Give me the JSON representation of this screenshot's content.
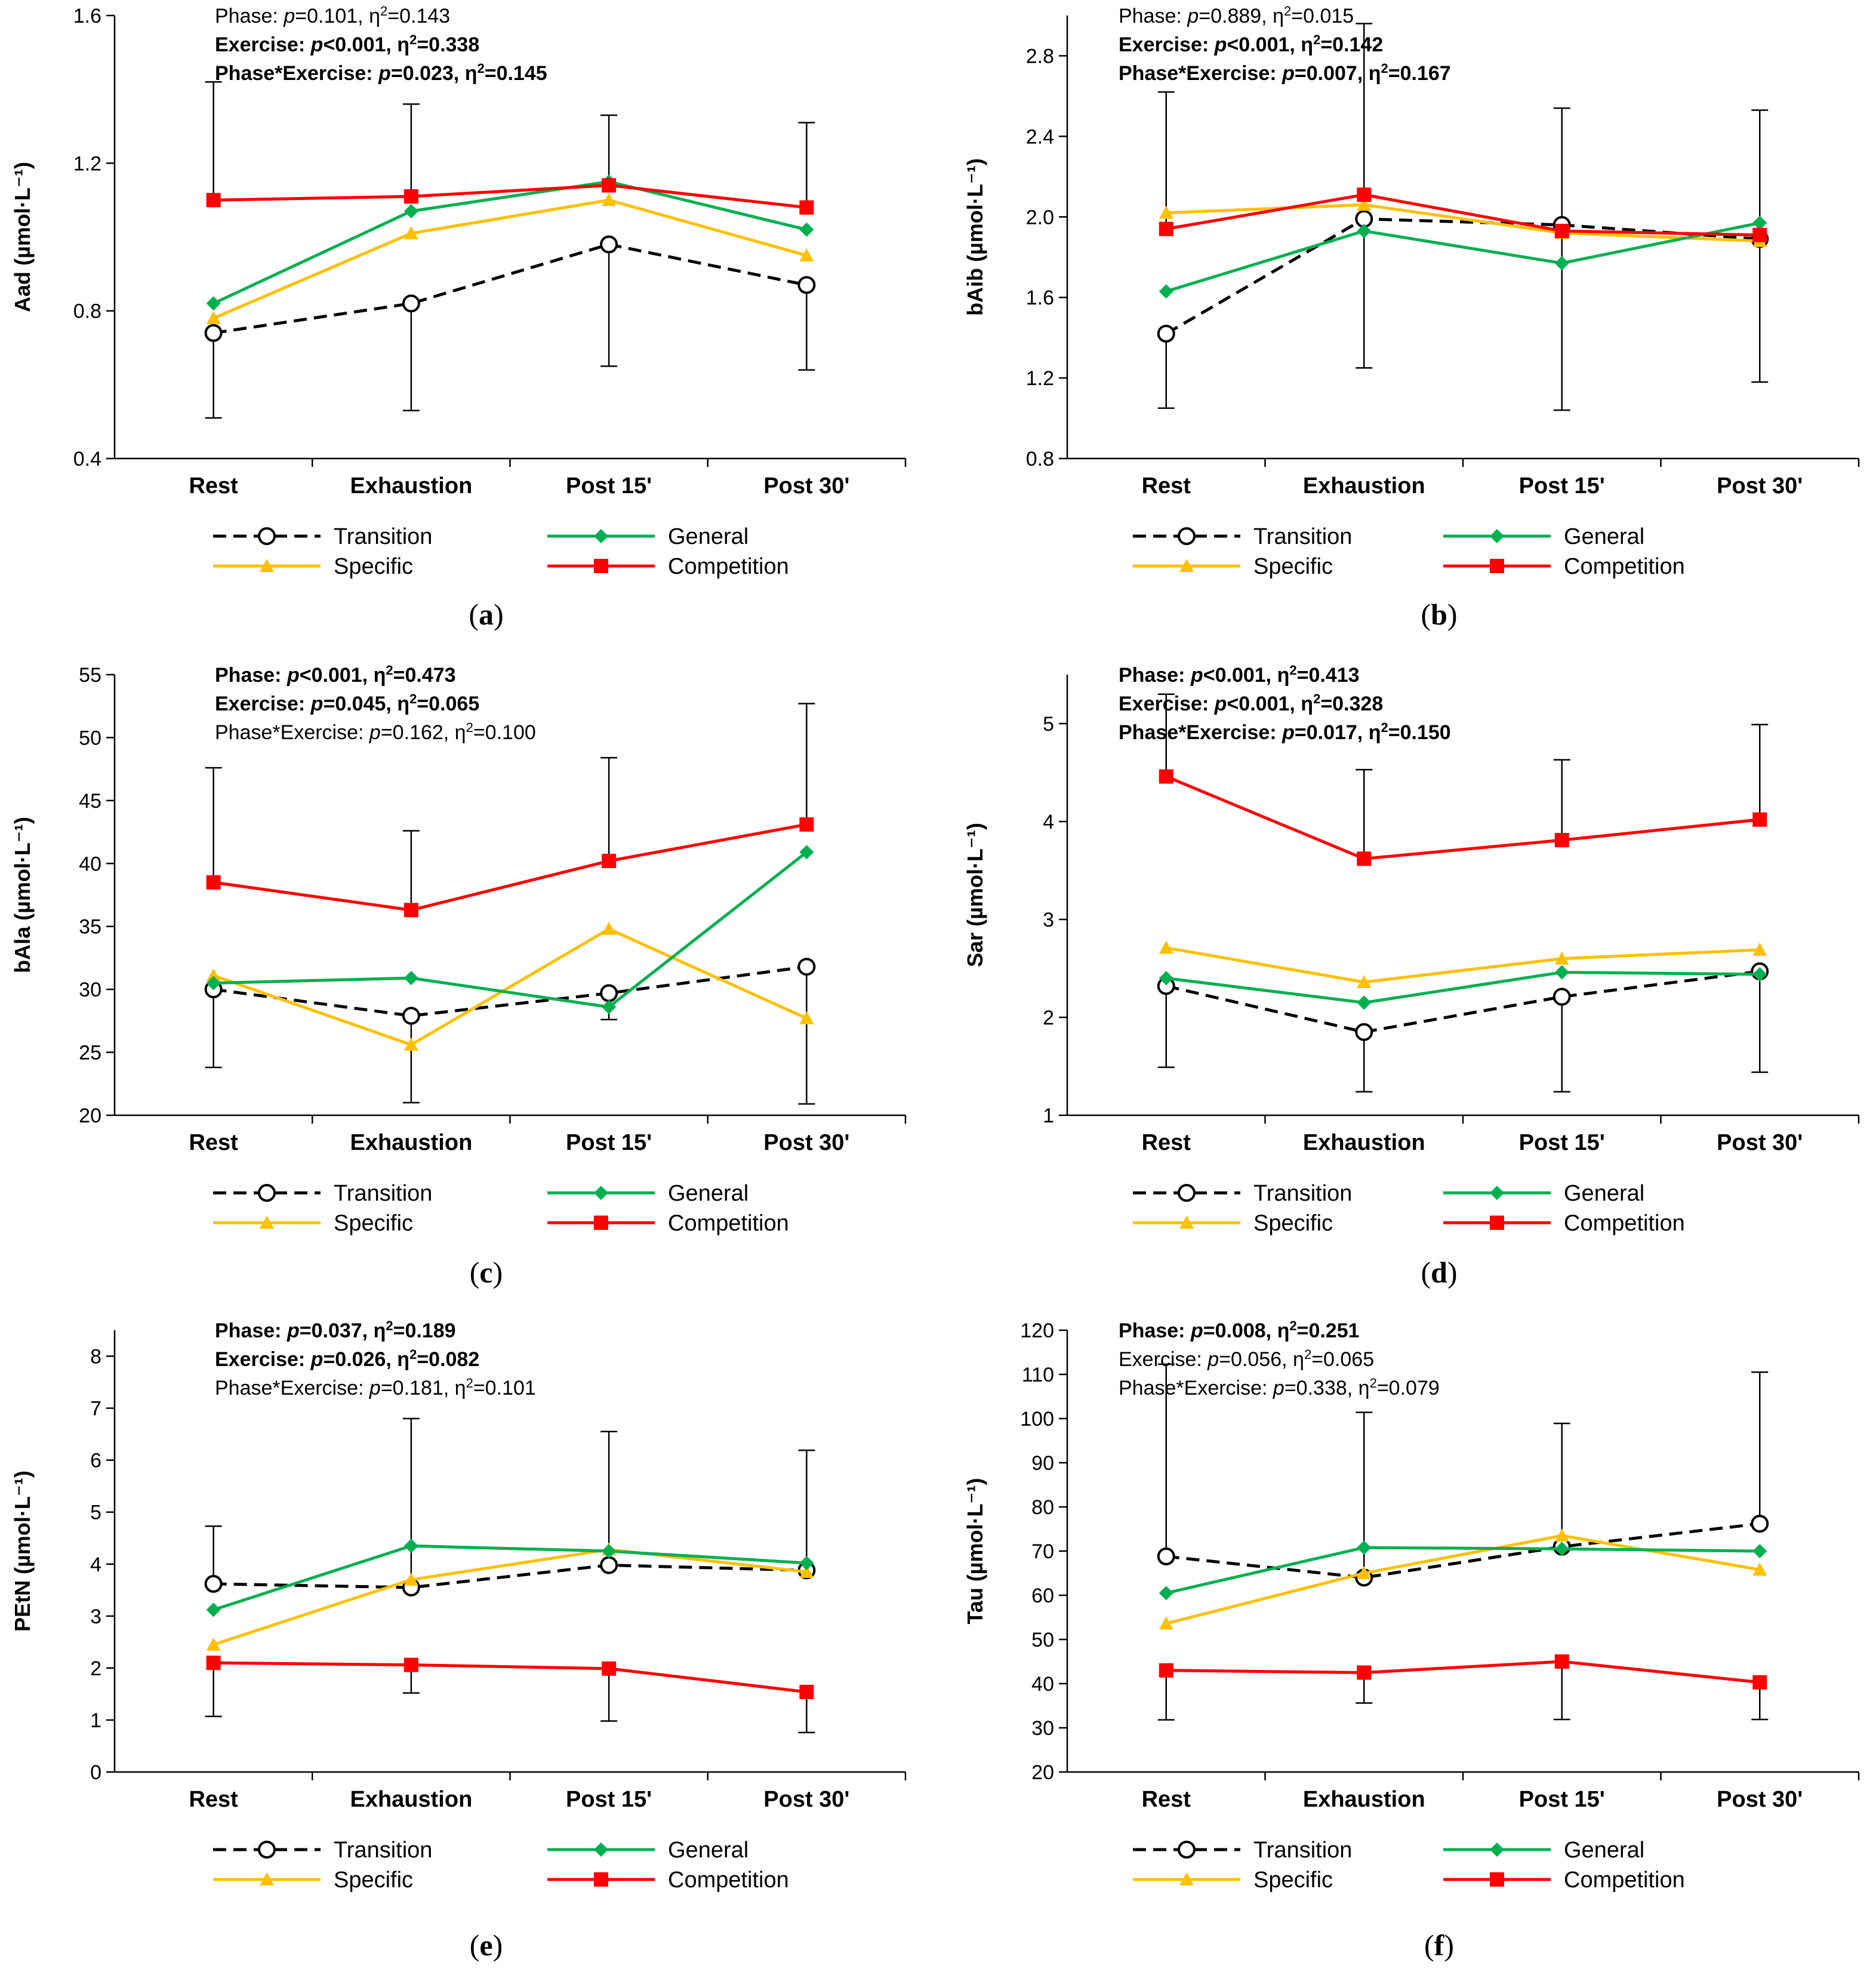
{
  "figure": {
    "x_categories": [
      "Rest",
      "Exhaustion",
      "Post 15'",
      "Post 30'"
    ],
    "legend": {
      "transition": "Transition",
      "general": "General",
      "specific": "Specific",
      "competition": "Competition"
    },
    "colors": {
      "transition": "#000000",
      "general": "#00b050",
      "specific": "#ffc000",
      "competition": "#ff0000",
      "errorbar": "#000000"
    }
  },
  "chart_data": [
    {
      "type": "line",
      "panel_label": "(a)",
      "panel_letter": "a",
      "ylabel": "Aad (µmol·L⁻¹)",
      "ylim": [
        0.4,
        1.6
      ],
      "yticks": [
        "0.4",
        "0.8",
        "1.2",
        "1.6"
      ],
      "yticks_values": [
        0.4,
        0.8,
        1.2,
        1.6
      ],
      "categories": [
        "Rest",
        "Exhaustion",
        "Post 15'",
        "Post 30'"
      ],
      "stats": [
        {
          "label": "Phase: ",
          "pv": "=0.101, η",
          "eta": "=0.143",
          "bold": false
        },
        {
          "label": "Exercise: ",
          "pv": "<0.001, η",
          "eta": "=0.338",
          "bold": true
        },
        {
          "label": "Phase*Exercise: ",
          "pv": "=0.023, η",
          "eta": "=0.145",
          "bold": true
        }
      ],
      "series": [
        {
          "name": "Transition",
          "values": [
            0.74,
            0.82,
            0.98,
            0.87
          ],
          "err_low": [
            0.51,
            0.53,
            0.65,
            0.64
          ],
          "err_high": null
        },
        {
          "name": "General",
          "values": [
            0.82,
            1.07,
            1.15,
            1.02
          ],
          "err_low": null,
          "err_high": null
        },
        {
          "name": "Specific",
          "values": [
            0.78,
            1.01,
            1.1,
            0.95
          ],
          "err_low": null,
          "err_high": null
        },
        {
          "name": "Competition",
          "values": [
            1.1,
            1.11,
            1.14,
            1.08
          ],
          "err_low": null,
          "err_high": [
            1.42,
            1.36,
            1.33,
            1.31
          ]
        }
      ]
    },
    {
      "type": "line",
      "panel_label": "(b)",
      "panel_letter": "b",
      "ylabel": "bAib (µmol·L⁻¹)",
      "ylim": [
        0.8,
        3.0
      ],
      "yticks": [
        "0.8",
        "1.2",
        "1.6",
        "2.0",
        "2.4",
        "2.8"
      ],
      "yticks_values": [
        0.8,
        1.2,
        1.6,
        2.0,
        2.4,
        2.8
      ],
      "categories": [
        "Rest",
        "Exhaustion",
        "Post 15'",
        "Post 30'"
      ],
      "stats": [
        {
          "label": "Phase: ",
          "pv": "=0.889, η",
          "eta": "=0.015",
          "bold": false
        },
        {
          "label": "Exercise: ",
          "pv": "<0.001, η",
          "eta": "=0.142",
          "bold": true
        },
        {
          "label": "Phase*Exercise: ",
          "pv": "=0.007, η",
          "eta": "=0.167",
          "bold": true
        }
      ],
      "series": [
        {
          "name": "Transition",
          "values": [
            1.42,
            1.99,
            1.96,
            1.89
          ],
          "err_low": [
            1.05,
            1.25,
            1.04,
            1.18
          ],
          "err_high": null
        },
        {
          "name": "General",
          "values": [
            1.63,
            1.93,
            1.77,
            1.97
          ],
          "err_low": null,
          "err_high": null
        },
        {
          "name": "Specific",
          "values": [
            2.02,
            2.06,
            1.92,
            1.88
          ],
          "err_low": null,
          "err_high": null
        },
        {
          "name": "Competition",
          "values": [
            1.94,
            2.11,
            1.93,
            1.91
          ],
          "err_low": null,
          "err_high": [
            2.62,
            2.96,
            2.54,
            2.53
          ]
        }
      ]
    },
    {
      "type": "line",
      "panel_label": "(c)",
      "panel_letter": "c",
      "ylabel": "bAla (µmol·L⁻¹)",
      "ylim": [
        20,
        55
      ],
      "yticks": [
        "20",
        "25",
        "30",
        "35",
        "40",
        "45",
        "50",
        "55"
      ],
      "yticks_values": [
        20,
        25,
        30,
        35,
        40,
        45,
        50,
        55
      ],
      "categories": [
        "Rest",
        "Exhaustion",
        "Post 15'",
        "Post 30'"
      ],
      "stats": [
        {
          "label": "Phase: ",
          "pv": "<0.001, η",
          "eta": "=0.473",
          "bold": true
        },
        {
          "label": "Exercise: ",
          "pv": "=0.045, η",
          "eta": "=0.065",
          "bold": true
        },
        {
          "label": "Phase*Exercise: ",
          "pv": "=0.162, η",
          "eta": "=0.100",
          "bold": false
        }
      ],
      "series": [
        {
          "name": "Transition",
          "values": [
            30.0,
            27.9,
            29.7,
            31.8
          ],
          "err_low": [
            23.8,
            21.0,
            27.6,
            20.9
          ],
          "err_high": null
        },
        {
          "name": "General",
          "values": [
            30.5,
            30.9,
            28.6,
            40.9
          ],
          "err_low": null,
          "err_high": null
        },
        {
          "name": "Specific",
          "values": [
            31.1,
            25.6,
            34.8,
            27.7
          ],
          "err_low": null,
          "err_high": null
        },
        {
          "name": "Competition",
          "values": [
            38.5,
            36.3,
            40.2,
            43.1
          ],
          "err_low": null,
          "err_high": [
            47.6,
            42.6,
            48.4,
            52.7
          ]
        }
      ]
    },
    {
      "type": "line",
      "panel_label": "(d)",
      "panel_letter": "d",
      "ylabel": "Sar (µmol·L⁻¹)",
      "ylim": [
        1,
        5.5
      ],
      "yticks": [
        "1",
        "2",
        "3",
        "4",
        "5"
      ],
      "yticks_values": [
        1,
        2,
        3,
        4,
        5
      ],
      "categories": [
        "Rest",
        "Exhaustion",
        "Post 15'",
        "Post 30'"
      ],
      "stats": [
        {
          "label": "Phase: ",
          "pv": "<0.001, η",
          "eta": "=0.413",
          "bold": true
        },
        {
          "label": "Exercise: ",
          "pv": "<0.001, η",
          "eta": "=0.328",
          "bold": true
        },
        {
          "label": "Phase*Exercise: ",
          "pv": "=0.017, η",
          "eta": "=0.150",
          "bold": true
        }
      ],
      "series": [
        {
          "name": "Transition",
          "values": [
            2.32,
            1.85,
            2.21,
            2.47
          ],
          "err_low": [
            1.49,
            1.24,
            1.24,
            1.44
          ],
          "err_high": null
        },
        {
          "name": "General",
          "values": [
            2.4,
            2.15,
            2.46,
            2.44
          ],
          "err_low": null,
          "err_high": null
        },
        {
          "name": "Specific",
          "values": [
            2.71,
            2.36,
            2.6,
            2.69
          ],
          "err_low": null,
          "err_high": null
        },
        {
          "name": "Competition",
          "values": [
            4.46,
            3.62,
            3.81,
            4.02
          ],
          "err_low": null,
          "err_high": [
            5.3,
            4.53,
            4.63,
            4.99
          ]
        }
      ]
    },
    {
      "type": "line",
      "panel_label": "(e)",
      "panel_letter": "e",
      "ylabel": "PEtN (µmol·L⁻¹)",
      "ylim": [
        0,
        8.5
      ],
      "yticks": [
        "0",
        "1",
        "2",
        "3",
        "4",
        "5",
        "6",
        "7",
        "8"
      ],
      "yticks_values": [
        0,
        1,
        2,
        3,
        4,
        5,
        6,
        7,
        8
      ],
      "categories": [
        "Rest",
        "Exhaustion",
        "Post 15'",
        "Post 30'"
      ],
      "stats": [
        {
          "label": "Phase: ",
          "pv": "=0.037, η",
          "eta": "=0.189",
          "bold": true
        },
        {
          "label": "Exercise: ",
          "pv": "=0.026, η",
          "eta": "=0.082",
          "bold": true
        },
        {
          "label": "Phase*Exercise: ",
          "pv": "=0.181, η",
          "eta": "=0.101",
          "bold": false
        }
      ],
      "series": [
        {
          "name": "Transition",
          "values": [
            3.62,
            3.55,
            3.98,
            3.88
          ],
          "err_low": null,
          "err_high": [
            4.73,
            6.8,
            6.55,
            6.19
          ]
        },
        {
          "name": "General",
          "values": [
            3.12,
            4.35,
            4.25,
            4.02
          ],
          "err_low": null,
          "err_high": null
        },
        {
          "name": "Specific",
          "values": [
            2.45,
            3.7,
            4.28,
            3.85
          ],
          "err_low": null,
          "err_high": null
        },
        {
          "name": "Competition",
          "values": [
            2.1,
            2.06,
            1.99,
            1.54
          ],
          "err_low": [
            1.07,
            1.52,
            0.98,
            0.76
          ],
          "err_high": null
        }
      ]
    },
    {
      "type": "line",
      "panel_label": "(f)",
      "panel_letter": "f",
      "ylabel": "Tau (µmol·L⁻¹)",
      "ylim": [
        20,
        120
      ],
      "yticks": [
        "20",
        "30",
        "40",
        "50",
        "60",
        "70",
        "80",
        "90",
        "100",
        "110",
        "120"
      ],
      "yticks_values": [
        20,
        30,
        40,
        50,
        60,
        70,
        80,
        90,
        100,
        110,
        120
      ],
      "categories": [
        "Rest",
        "Exhaustion",
        "Post 15'",
        "Post 30'"
      ],
      "stats": [
        {
          "label": "Phase: ",
          "pv": "=0.008, η",
          "eta": "=0.251",
          "bold": true
        },
        {
          "label": "Exercise: ",
          "pv": "=0.056, η",
          "eta": "=0.065",
          "bold": false
        },
        {
          "label": "Phase*Exercise: ",
          "pv": "=0.338, η",
          "eta": "=0.079",
          "bold": false
        }
      ],
      "series": [
        {
          "name": "Transition",
          "values": [
            68.8,
            64.0,
            71.0,
            76.2
          ],
          "err_low": null,
          "err_high": [
            112.3,
            101.4,
            98.9,
            110.5
          ]
        },
        {
          "name": "General",
          "values": [
            60.5,
            70.8,
            70.5,
            70.0
          ],
          "err_low": null,
          "err_high": null
        },
        {
          "name": "Specific",
          "values": [
            53.6,
            65.0,
            73.5,
            65.8
          ],
          "err_low": null,
          "err_high": null
        },
        {
          "name": "Competition",
          "values": [
            43.0,
            42.5,
            45.0,
            40.3
          ],
          "err_low": [
            31.8,
            35.6,
            31.9,
            31.9
          ],
          "err_high": null
        }
      ]
    }
  ]
}
